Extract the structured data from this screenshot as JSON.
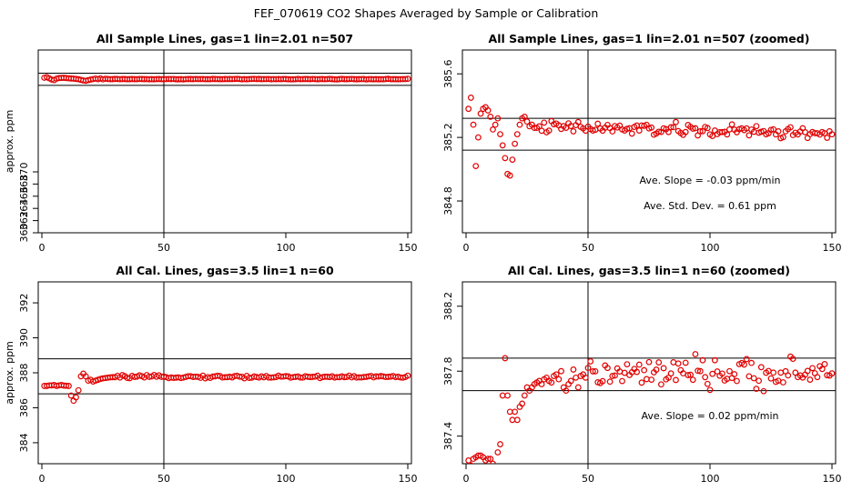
{
  "figure_title": "FEF_070619  CO2 Shapes Averaged by Sample or Calibration",
  "colors": {
    "points": "#e00000",
    "axes": "#000000",
    "background": "#ffffff"
  },
  "chart_data": [
    {
      "type": "scatter",
      "title": "All Sample Lines, gas=1 lin=2.01 n=507",
      "xlabel": "",
      "ylabel": "approx. ppm",
      "xlim": [
        0,
        150
      ],
      "ylim": [
        360,
        390
      ],
      "xticks": [
        "0",
        "50",
        "100",
        "150"
      ],
      "yticks": [
        "360",
        "362",
        "364",
        "366",
        "368",
        "370"
      ],
      "vline": 50,
      "hlines": [
        384.2,
        386.2
      ],
      "annotations": [],
      "series": [
        {
          "style": "profile",
          "n": 150,
          "baseline": 385.22,
          "noise": 0.02,
          "points": [
            [
              1,
              385.45
            ],
            [
              2,
              385.55
            ],
            [
              3,
              385.35
            ],
            [
              4,
              385.15
            ],
            [
              5,
              385.05
            ],
            [
              6,
              385.3
            ],
            [
              7,
              385.4
            ],
            [
              8,
              385.42
            ],
            [
              9,
              385.44
            ],
            [
              10,
              385.4
            ],
            [
              11,
              385.35
            ],
            [
              12,
              385.33
            ],
            [
              13,
              385.3
            ],
            [
              14,
              385.25
            ],
            [
              15,
              385.2
            ],
            [
              16,
              385.1
            ],
            [
              17,
              385.0
            ],
            [
              18,
              384.95
            ],
            [
              19,
              385.05
            ],
            [
              20,
              385.15
            ],
            [
              22,
              385.3
            ],
            [
              24,
              385.33
            ],
            [
              26,
              385.28
            ],
            [
              30,
              385.25
            ]
          ]
        }
      ]
    },
    {
      "type": "scatter",
      "title": "All Sample Lines, gas=1 lin=2.01 n=507 (zoomed)",
      "xlabel": "",
      "ylabel": "",
      "xlim": [
        0,
        150
      ],
      "ylim": [
        384.6,
        385.75
      ],
      "xticks": [
        "0",
        "50",
        "100",
        "150"
      ],
      "yticks": [
        "384.8",
        "385.2",
        "385.6"
      ],
      "vline": 50,
      "hlines": [
        385.12,
        385.32
      ],
      "annotations": [
        "Ave. Slope =  -0.03  ppm/min",
        "Ave. Std. Dev. =  0.61  ppm"
      ],
      "series": [
        {
          "style": "profile",
          "n": 150,
          "baseline": 385.25,
          "noise": 0.02,
          "trend": -0.05,
          "points": [
            [
              1,
              385.38
            ],
            [
              2,
              385.45
            ],
            [
              3,
              385.28
            ],
            [
              4,
              385.02
            ],
            [
              5,
              385.2
            ],
            [
              6,
              385.35
            ],
            [
              7,
              385.38
            ],
            [
              8,
              385.39
            ],
            [
              9,
              385.37
            ],
            [
              10,
              385.33
            ],
            [
              11,
              385.25
            ],
            [
              12,
              385.28
            ],
            [
              13,
              385.32
            ],
            [
              14,
              385.22
            ],
            [
              15,
              385.15
            ],
            [
              16,
              385.07
            ],
            [
              17,
              384.97
            ],
            [
              18,
              384.96
            ],
            [
              19,
              385.06
            ],
            [
              20,
              385.16
            ],
            [
              21,
              385.22
            ],
            [
              22,
              385.28
            ],
            [
              23,
              385.32
            ],
            [
              24,
              385.33
            ],
            [
              25,
              385.3
            ],
            [
              26,
              385.27
            ],
            [
              27,
              385.28
            ],
            [
              28,
              385.26
            ],
            [
              29,
              385.26
            ],
            [
              30,
              385.27
            ]
          ]
        }
      ]
    },
    {
      "type": "scatter",
      "title": "All Cal. Lines, gas=3.5 lin=1 n=60",
      "xlabel": "",
      "ylabel": "approx. ppm",
      "xlim": [
        0,
        150
      ],
      "ylim": [
        382.8,
        393.2
      ],
      "xticks": [
        "0",
        "50",
        "100",
        "150"
      ],
      "yticks": [
        "384",
        "386",
        "388",
        "390",
        "392"
      ],
      "vline": 50,
      "hlines": [
        386.8,
        388.8
      ],
      "annotations": [],
      "series": [
        {
          "style": "profile",
          "n": 150,
          "baseline": 387.77,
          "noise": 0.04,
          "points": [
            [
              1,
              387.25
            ],
            [
              2,
              387.25
            ],
            [
              3,
              387.28
            ],
            [
              4,
              387.28
            ],
            [
              5,
              387.3
            ],
            [
              6,
              387.25
            ],
            [
              7,
              387.28
            ],
            [
              8,
              387.3
            ],
            [
              9,
              387.27
            ],
            [
              10,
              387.26
            ],
            [
              11,
              387.25
            ],
            [
              12,
              386.7
            ],
            [
              13,
              386.4
            ],
            [
              14,
              386.6
            ],
            [
              15,
              387.0
            ],
            [
              16,
              387.8
            ],
            [
              17,
              387.95
            ],
            [
              18,
              387.8
            ],
            [
              19,
              387.55
            ],
            [
              20,
              387.6
            ],
            [
              21,
              387.5
            ],
            [
              22,
              387.55
            ],
            [
              23,
              387.6
            ],
            [
              24,
              387.65
            ],
            [
              25,
              387.68
            ],
            [
              26,
              387.7
            ],
            [
              27,
              387.72
            ],
            [
              28,
              387.74
            ],
            [
              29,
              387.75
            ],
            [
              30,
              387.75
            ]
          ]
        }
      ]
    },
    {
      "type": "scatter",
      "title": "All Cal. Lines, gas=3.5 lin=1 n=60 (zoomed)",
      "xlabel": "",
      "ylabel": "",
      "xlim": [
        0,
        150
      ],
      "ylim": [
        387.23,
        388.35
      ],
      "xticks": [
        "0",
        "50",
        "100",
        "150"
      ],
      "yticks": [
        "387.4",
        "387.8",
        "388.2"
      ],
      "vline": 50,
      "hlines": [
        387.68,
        387.88
      ],
      "annotations": [
        "Ave. Slope =  0.02  ppm/min"
      ],
      "series": [
        {
          "style": "profile",
          "n": 150,
          "baseline": 387.78,
          "noise": 0.045,
          "trend": 0.02,
          "points": [
            [
              1,
              387.25
            ],
            [
              2,
              387.22
            ],
            [
              3,
              387.26
            ],
            [
              4,
              387.27
            ],
            [
              5,
              387.28
            ],
            [
              6,
              387.28
            ],
            [
              7,
              387.27
            ],
            [
              8,
              387.25
            ],
            [
              9,
              387.26
            ],
            [
              10,
              387.26
            ],
            [
              11,
              387.23
            ],
            [
              12,
              387.2
            ],
            [
              13,
              387.3
            ],
            [
              14,
              387.35
            ],
            [
              15,
              387.65
            ],
            [
              16,
              387.88
            ],
            [
              17,
              387.65
            ],
            [
              18,
              387.55
            ],
            [
              19,
              387.5
            ],
            [
              20,
              387.55
            ],
            [
              21,
              387.5
            ],
            [
              22,
              387.58
            ],
            [
              23,
              387.6
            ],
            [
              24,
              387.65
            ],
            [
              25,
              387.7
            ],
            [
              26,
              387.68
            ],
            [
              27,
              387.7
            ],
            [
              28,
              387.72
            ],
            [
              29,
              387.73
            ],
            [
              30,
              387.74
            ],
            [
              31,
              387.72
            ],
            [
              32,
              387.75
            ],
            [
              33,
              387.76
            ],
            [
              34,
              387.74
            ],
            [
              35,
              387.73
            ],
            [
              36,
              387.77
            ],
            [
              37,
              387.78
            ],
            [
              38,
              387.75
            ],
            [
              39,
              387.8
            ],
            [
              40,
              387.7
            ],
            [
              41,
              387.68
            ],
            [
              42,
              387.72
            ],
            [
              43,
              387.74
            ],
            [
              44,
              387.81
            ],
            [
              45,
              387.76
            ],
            [
              46,
              387.7
            ],
            [
              47,
              387.77
            ],
            [
              48,
              387.78
            ],
            [
              49,
              387.76
            ],
            [
              50,
              387.82
            ]
          ]
        }
      ]
    }
  ]
}
